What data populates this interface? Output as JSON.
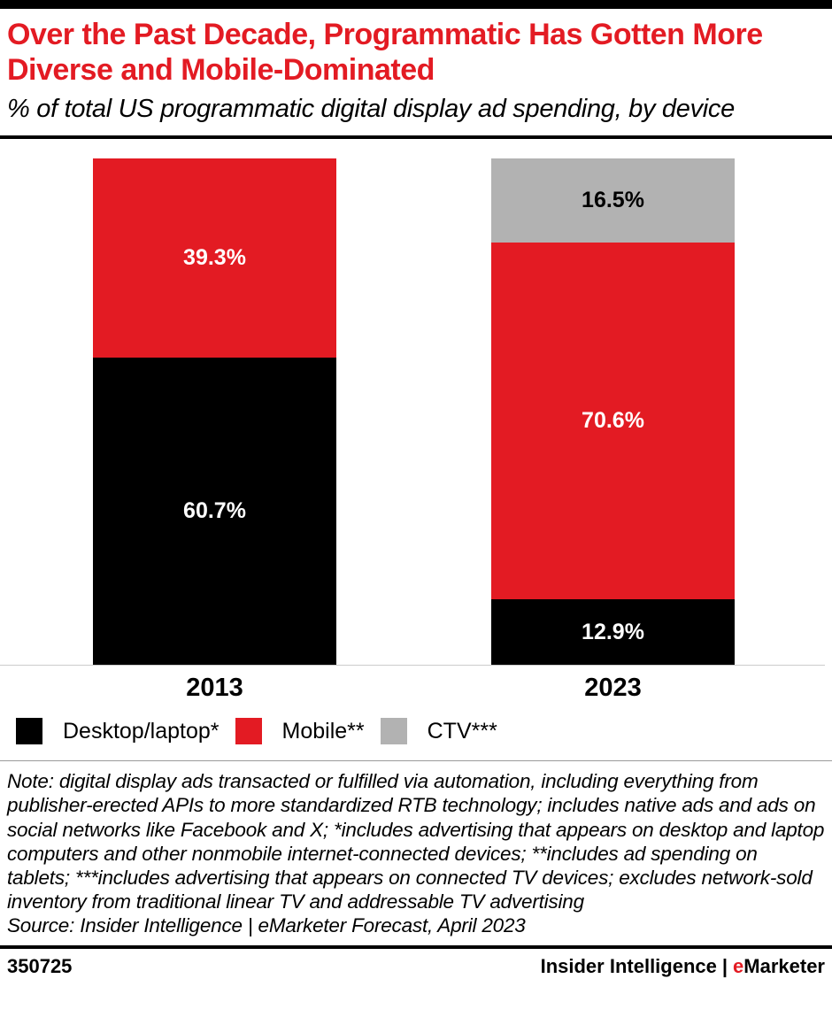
{
  "header": {
    "title": "Over the Past Decade, Programmatic Has Gotten More Diverse and Mobile-Dominated",
    "subtitle": "% of total US programmatic digital display ad spending, by device"
  },
  "chart_data": {
    "type": "bar",
    "stacked": true,
    "title": "% of total US programmatic digital display ad spending, by device",
    "categories": [
      "2013",
      "2023"
    ],
    "series": [
      {
        "name": "Desktop/laptop*",
        "color": "#000000",
        "label_color": "#ffffff",
        "values": [
          60.7,
          12.9
        ]
      },
      {
        "name": "Mobile**",
        "color": "#e31b23",
        "label_color": "#ffffff",
        "values": [
          39.3,
          70.6
        ]
      },
      {
        "name": "CTV***",
        "color": "#b2b2b2",
        "label_color": "#000000",
        "values": [
          null,
          16.5
        ]
      }
    ],
    "unit": "%",
    "ylim": [
      0,
      100
    ],
    "grid": false,
    "legend_position": "bottom"
  },
  "note": "Note: digital display ads transacted or fulfilled via automation, including everything from publisher-erected APIs to more standardized RTB technology; includes native ads and ads on social networks like Facebook and X; *includes advertising that appears on desktop and laptop computers and other nonmobile internet-connected devices; **includes ad spending on tablets; ***includes advertising that appears on connected TV devices; excludes network-sold inventory from traditional linear TV and addressable TV advertising",
  "source": "Source: Insider Intelligence | eMarketer Forecast, April 2023",
  "footer": {
    "chart_id": "350725",
    "brand_insider": "Insider Intelligence",
    "brand_pipe": "|",
    "brand_e": "e",
    "brand_marketer": "Marketer"
  }
}
